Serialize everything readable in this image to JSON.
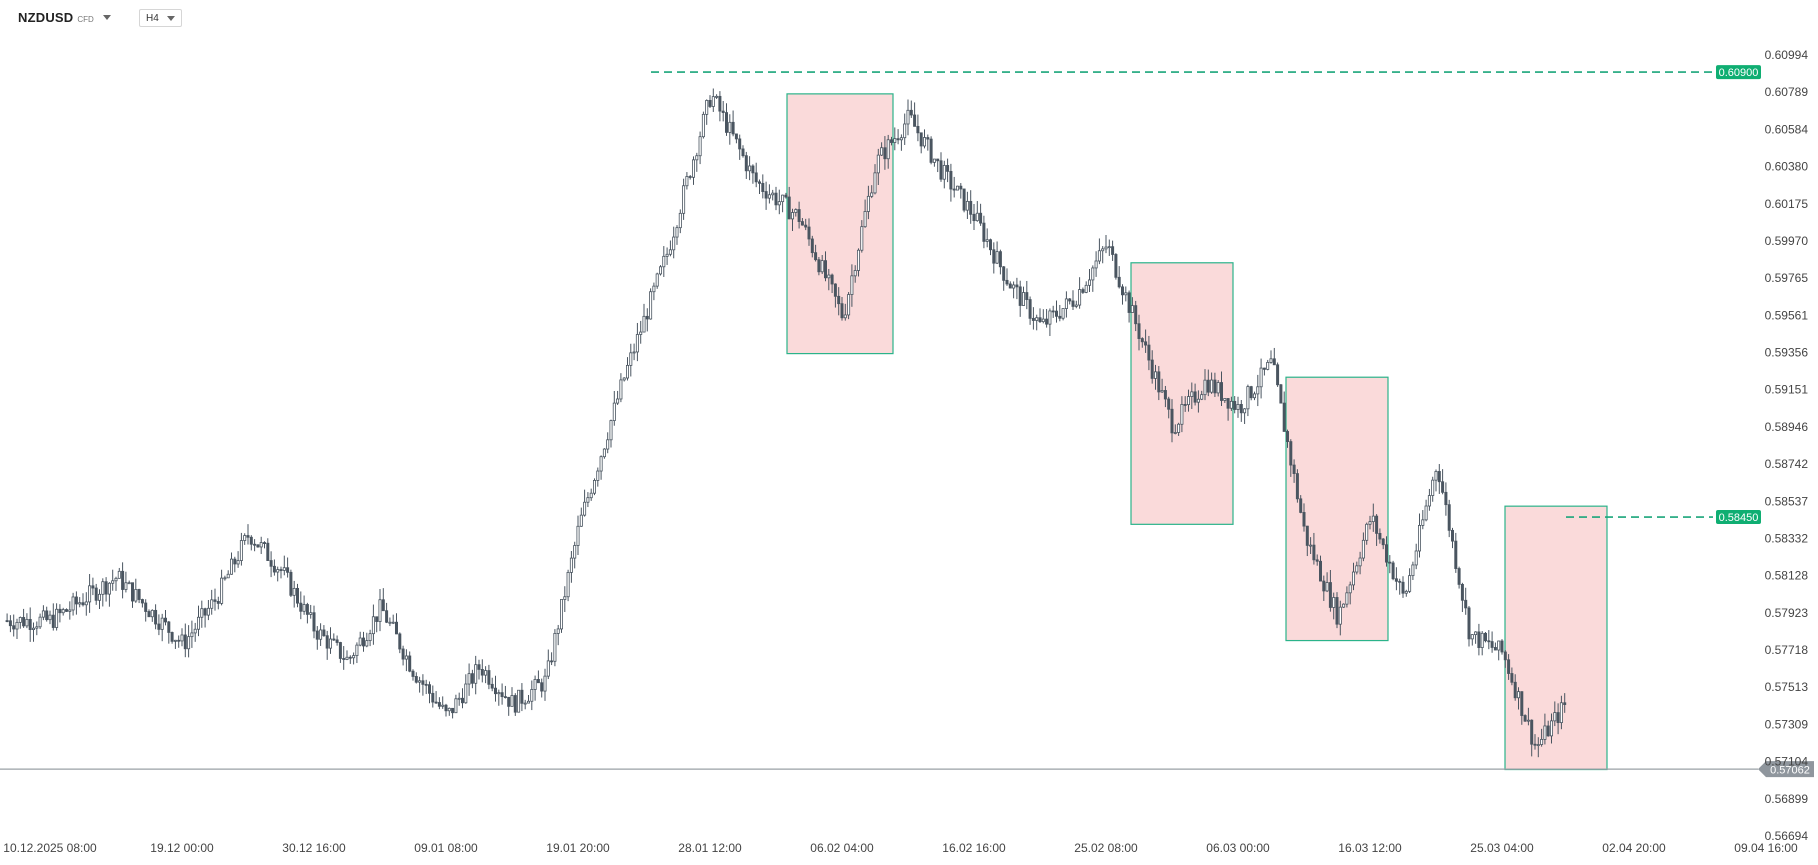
{
  "toolbar": {
    "symbol": "NZDUSD",
    "instrument_type": "CFD",
    "timeframe": "H4"
  },
  "colors": {
    "candle_body": "#4a5560",
    "candle_body_bull": "#ffffff",
    "zone_fill": "#f9d6d6",
    "zone_border": "#2bb38a",
    "level_line": "#1aa57a",
    "level_tag": "#0fae72",
    "current_price_line": "#9aa0a6",
    "current_price_tag": "#8f969d"
  },
  "chart_data": {
    "type": "candlestick",
    "symbol": "NZDUSD",
    "timeframe": "H4",
    "y_axis": {
      "ylim": [
        0.56694,
        0.61045
      ],
      "ticks": [
        "0.60994",
        "0.60789",
        "0.60584",
        "0.60380",
        "0.60175",
        "0.59970",
        "0.59765",
        "0.59561",
        "0.59356",
        "0.59151",
        "0.58946",
        "0.58742",
        "0.58537",
        "0.58332",
        "0.58128",
        "0.57923",
        "0.57718",
        "0.57513",
        "0.57309",
        "0.57104",
        "0.56899",
        "0.56694"
      ]
    },
    "x_axis": {
      "ticks": [
        "10.12.2025 08:00",
        "19.12 00:00",
        "30.12 16:00",
        "09.01 08:00",
        "19.01 20:00",
        "28.01 12:00",
        "06.02 04:00",
        "16.02 16:00",
        "25.02 08:00",
        "06.03 00:00",
        "16.03 12:00",
        "25.03 04:00",
        "02.04 20:00",
        "09.04 16:00"
      ]
    },
    "price_path": [
      {
        "x": "10.12.2025 08:00",
        "close": 0.5788
      },
      {
        "x": "14.12",
        "close": 0.5812
      },
      {
        "x": "19.12 00:00",
        "close": 0.5775
      },
      {
        "x": "22.12",
        "close": 0.58
      },
      {
        "x": "24.12",
        "close": 0.5836
      },
      {
        "x": "27.12",
        "close": 0.5815
      },
      {
        "x": "30.12 16:00",
        "close": 0.5783
      },
      {
        "x": "01.01",
        "close": 0.5766
      },
      {
        "x": "03.01",
        "close": 0.5795
      },
      {
        "x": "06.01",
        "close": 0.576
      },
      {
        "x": "09.01 08:00",
        "close": 0.5735
      },
      {
        "x": "10.01",
        "close": 0.5763
      },
      {
        "x": "13.01",
        "close": 0.5742
      },
      {
        "x": "15.01",
        "close": 0.5755
      },
      {
        "x": "19.01 20:00",
        "close": 0.584
      },
      {
        "x": "22.01",
        "close": 0.592
      },
      {
        "x": "25.01",
        "close": 0.599
      },
      {
        "x": "28.01 12:00",
        "close": 0.6078
      },
      {
        "x": "31.01",
        "close": 0.603
      },
      {
        "x": "02.02",
        "close": 0.601
      },
      {
        "x": "06.02 04:00",
        "close": 0.5955
      },
      {
        "x": "08.02",
        "close": 0.604
      },
      {
        "x": "11.02",
        "close": 0.6065
      },
      {
        "x": "13.02",
        "close": 0.6035
      },
      {
        "x": "16.02 16:00",
        "close": 0.601
      },
      {
        "x": "18.02",
        "close": 0.5975
      },
      {
        "x": "20.02",
        "close": 0.595
      },
      {
        "x": "23.02",
        "close": 0.5965
      },
      {
        "x": "25.02 08:00",
        "close": 0.5995
      },
      {
        "x": "27.02",
        "close": 0.5945
      },
      {
        "x": "01.03",
        "close": 0.5895
      },
      {
        "x": "04.03",
        "close": 0.592
      },
      {
        "x": "06.03 00:00",
        "close": 0.5905
      },
      {
        "x": "07.03",
        "close": 0.593
      },
      {
        "x": "10.03",
        "close": 0.5835
      },
      {
        "x": "13.03",
        "close": 0.579
      },
      {
        "x": "16.03 12:00",
        "close": 0.5845
      },
      {
        "x": "18.03",
        "close": 0.58
      },
      {
        "x": "20.03",
        "close": 0.5875
      },
      {
        "x": "22.03",
        "close": 0.578
      },
      {
        "x": "25.03 04:00",
        "close": 0.577
      },
      {
        "x": "27.03",
        "close": 0.5718
      },
      {
        "x": "29.03",
        "close": 0.5745
      },
      {
        "x": "31.03",
        "close": 0.5712
      }
    ],
    "zones": [
      {
        "from": "05.02",
        "to": "12.02",
        "high": 0.6078,
        "low": 0.5935
      },
      {
        "from": "26.02",
        "to": "05.03",
        "high": 0.5985,
        "low": 0.5841
      },
      {
        "from": "10.03",
        "to": "18.03",
        "high": 0.5922,
        "low": 0.5777
      },
      {
        "from": "23.03",
        "to": "31.03",
        "high": 0.5851,
        "low": 0.5706
      }
    ],
    "levels": [
      {
        "price": 0.609,
        "label": "0.60900"
      },
      {
        "price": 0.5845,
        "label": "0.58450"
      }
    ],
    "current_price": {
      "price": 0.57062,
      "label": "0.57062"
    }
  }
}
